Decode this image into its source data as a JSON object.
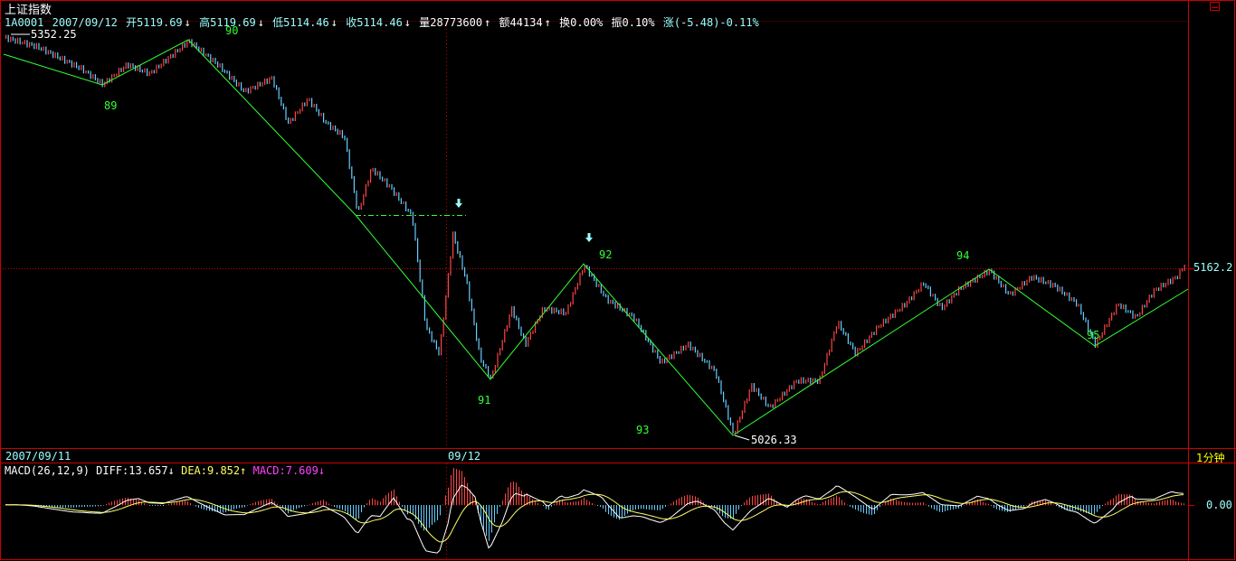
{
  "window": {
    "title": "上证指数",
    "period_label": "1分钟",
    "maximize_icon": "maximize-icon"
  },
  "infobar": {
    "code": "1A0001",
    "date": "2007/09/12",
    "open": "开5119.69",
    "high": "高5119.69",
    "low": "低5114.46",
    "close": "收5114.46",
    "volume": "量28773600",
    "amount": "额44134",
    "turnover": "换0.00%",
    "amplitude": "振0.10%",
    "change": "涨(-5.48)-0.11%"
  },
  "price_panel": {
    "high_label": "5352.25",
    "low_label": "5026.33",
    "current_price": "5162.2",
    "wave_labels": [
      "89",
      "90",
      "91",
      "92",
      "93",
      "94",
      "95"
    ]
  },
  "time_axis": {
    "left_date": "2007/09/11",
    "mid_date": "09/12"
  },
  "macd_panel": {
    "name": "MACD(26,12,9)",
    "diff": "DIFF:13.657",
    "dea": "DEA:9.852",
    "macd": "MACD:7.609",
    "zero_label": "0.00"
  },
  "colors": {
    "frame": "#c00000",
    "up": "#ff4444",
    "down": "#66ccff",
    "wave_line": "#33ff33",
    "info_text": "#99ffff",
    "diff_line": "#ffffff",
    "dea_line": "#ffff66",
    "macd_text": "#ff44ff"
  }
}
